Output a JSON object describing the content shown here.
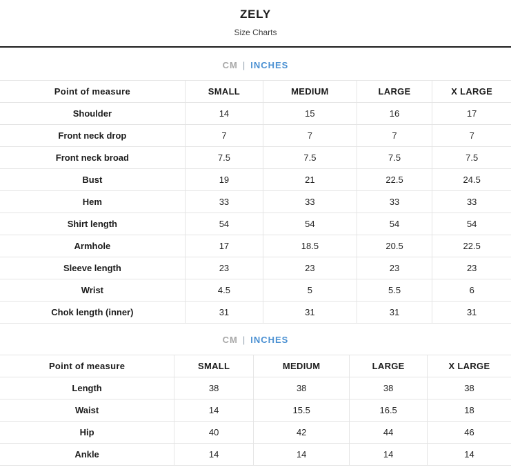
{
  "header": {
    "title": "ZELY",
    "subtitle": "Size Charts"
  },
  "unit_toggle": {
    "cm_label": "CM",
    "separator": "|",
    "inches_label": "INCHES",
    "selected_unit": "INCHES"
  },
  "colors": {
    "accent_blue": "#4a90d2",
    "muted_gray": "#a8a8a8",
    "table_border": "#e4e4e4",
    "text": "#1f1f1f",
    "top_divider": "#1b1b1b"
  },
  "tables": [
    {
      "name": "upper-garment-size-chart",
      "columns": [
        "Point of measure",
        "SMALL",
        "MEDIUM",
        "LARGE",
        "X LARGE"
      ],
      "rows": [
        {
          "label": "Shoulder",
          "values": [
            "14",
            "15",
            "16",
            "17"
          ]
        },
        {
          "label": "Front neck drop",
          "values": [
            "7",
            "7",
            "7",
            "7"
          ]
        },
        {
          "label": "Front neck broad",
          "values": [
            "7.5",
            "7.5",
            "7.5",
            "7.5"
          ]
        },
        {
          "label": "Bust",
          "values": [
            "19",
            "21",
            "22.5",
            "24.5"
          ]
        },
        {
          "label": "Hem",
          "values": [
            "33",
            "33",
            "33",
            "33"
          ]
        },
        {
          "label": "Shirt length",
          "values": [
            "54",
            "54",
            "54",
            "54"
          ]
        },
        {
          "label": "Armhole",
          "values": [
            "17",
            "18.5",
            "20.5",
            "22.5"
          ]
        },
        {
          "label": "Sleeve length",
          "values": [
            "23",
            "23",
            "23",
            "23"
          ]
        },
        {
          "label": "Wrist",
          "values": [
            "4.5",
            "5",
            "5.5",
            "6"
          ]
        },
        {
          "label": "Chok length (inner)",
          "values": [
            "31",
            "31",
            "31",
            "31"
          ]
        }
      ]
    },
    {
      "name": "lower-garment-size-chart",
      "columns": [
        "Point of measure",
        "SMALL",
        "MEDIUM",
        "LARGE",
        "X LARGE"
      ],
      "rows": [
        {
          "label": "Length",
          "values": [
            "38",
            "38",
            "38",
            "38"
          ]
        },
        {
          "label": "Waist",
          "values": [
            "14",
            "15.5",
            "16.5",
            "18"
          ]
        },
        {
          "label": "Hip",
          "values": [
            "40",
            "42",
            "44",
            "46"
          ]
        },
        {
          "label": "Ankle",
          "values": [
            "14",
            "14",
            "14",
            "14"
          ]
        }
      ]
    }
  ]
}
